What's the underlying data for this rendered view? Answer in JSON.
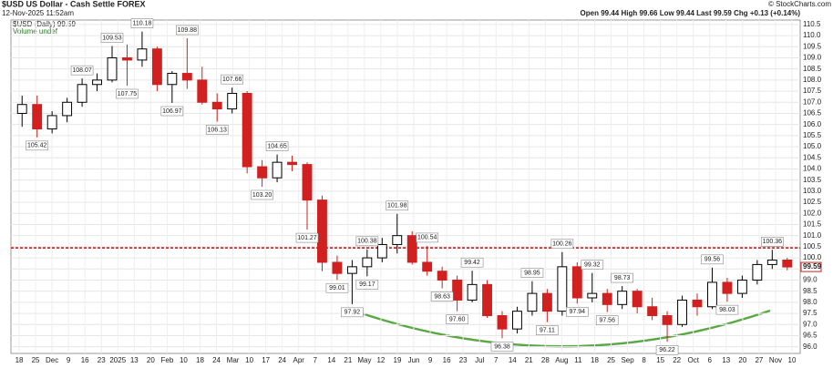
{
  "chart_data": {
    "type": "candlestick",
    "title": "$USD US Dollar - Cash Settle FOREX",
    "timestamp": "12-Nov-2025 11:52am",
    "credit": "© StockCharts.com",
    "quote": "Open 99.44 High 99.66 Low 99.44 Last 99.59 Chg +0.13 (+0.14%)",
    "legend": [
      "$USD (Daily) 99.59",
      "Volume undef"
    ],
    "last_price": 99.59,
    "up_color": "#000000",
    "down_color": "#d02020",
    "open": [
      106.5,
      106.9,
      105.8,
      106.4,
      107.0,
      107.8,
      108.0,
      109.0,
      108.9,
      109.4,
      107.8,
      108.3,
      108.0,
      107.0,
      106.7,
      107.4,
      104.1,
      103.6,
      104.3,
      104.2,
      102.6,
      99.8,
      99.3,
      99.6,
      100.0,
      100.6,
      101.0,
      99.8,
      99.4,
      99.0,
      98.1,
      98.8,
      97.4,
      96.8,
      97.6,
      98.4,
      97.6,
      99.6,
      98.2,
      98.4,
      97.9,
      98.5,
      97.8,
      97.4,
      97.0,
      98.1,
      97.8,
      98.9,
      98.4,
      99.0,
      99.7,
      99.9
    ],
    "high": [
      107.3,
      107.3,
      106.6,
      107.2,
      108.07,
      108.3,
      109.53,
      109.6,
      110.18,
      109.5,
      108.4,
      109.88,
      108.6,
      107.4,
      107.66,
      107.5,
      104.4,
      104.65,
      104.6,
      104.3,
      102.8,
      100.1,
      99.9,
      100.38,
      100.9,
      101.98,
      101.2,
      100.54,
      99.6,
      99.2,
      99.42,
      99.0,
      97.6,
      97.8,
      98.95,
      98.6,
      100.26,
      99.8,
      99.32,
      98.6,
      98.73,
      98.6,
      98.2,
      97.6,
      98.3,
      98.4,
      99.56,
      99.1,
      99.2,
      99.9,
      100.36,
      100.0
    ],
    "low": [
      105.9,
      105.42,
      105.6,
      106.1,
      106.8,
      107.5,
      107.9,
      107.75,
      108.6,
      107.5,
      106.97,
      107.6,
      106.9,
      106.13,
      106.5,
      103.8,
      103.2,
      103.4,
      103.9,
      101.27,
      99.4,
      99.01,
      97.92,
      99.17,
      99.8,
      100.2,
      99.7,
      99.2,
      98.63,
      97.6,
      98.0,
      97.3,
      96.38,
      96.6,
      97.4,
      97.11,
      97.4,
      97.94,
      98.0,
      97.56,
      97.7,
      97.5,
      97.2,
      96.22,
      96.9,
      97.4,
      97.7,
      98.03,
      98.2,
      98.8,
      99.5,
      99.44
    ],
    "close": [
      106.9,
      105.8,
      106.4,
      107.0,
      107.8,
      108.0,
      109.0,
      108.9,
      109.4,
      107.8,
      108.3,
      108.0,
      107.0,
      106.7,
      107.4,
      104.1,
      103.6,
      104.3,
      104.2,
      102.6,
      99.8,
      99.3,
      99.6,
      100.0,
      100.6,
      101.0,
      99.8,
      99.4,
      99.0,
      98.1,
      98.8,
      97.4,
      96.8,
      97.6,
      98.4,
      97.6,
      99.6,
      98.2,
      98.4,
      97.9,
      98.5,
      97.8,
      97.4,
      97.0,
      98.1,
      97.8,
      98.9,
      98.4,
      99.0,
      99.7,
      99.9,
      99.59
    ],
    "price_labels": [
      108.07,
      105.42,
      109.53,
      107.75,
      110.18,
      106.97,
      109.88,
      106.13,
      107.66,
      104.65,
      {
        "value": 103.2,
        "label": "103.20"
      },
      101.27,
      99.01,
      97.92,
      100.38,
      99.17,
      101.98,
      100.54,
      98.63,
      99.42,
      {
        "value": 97.6,
        "label": "97.60"
      },
      96.38,
      98.95,
      97.11,
      100.26,
      99.32,
      97.94,
      97.56,
      98.73,
      96.22,
      99.56,
      98.03,
      100.36
    ],
    "reference_line": {
      "value": 100.45,
      "color": "#e00000"
    },
    "x_labels": [
      "18",
      "25",
      "Dec",
      "9",
      "16",
      "23",
      "2025",
      "13",
      "20",
      "Feb",
      "10",
      "18",
      "24",
      "Mar",
      "10",
      "17",
      "24",
      "Apr",
      "7",
      "14",
      "21",
      "May",
      "12",
      "19",
      "Jun",
      "9",
      "16",
      "23",
      "Jul",
      "7",
      "14",
      "21",
      "28",
      "Aug",
      "11",
      "18",
      "25",
      "Sep",
      "8",
      "15",
      "22",
      "Oct",
      "6",
      "13",
      "20",
      "27",
      "Nov",
      "10"
    ],
    "ylim": [
      95.7,
      110.7
    ],
    "yticks": [
      {
        "value": 96,
        "label": "96.0"
      },
      96.5,
      {
        "value": 97,
        "label": "97.0"
      },
      97.5,
      {
        "value": 98,
        "label": "98.0"
      },
      98.5,
      {
        "value": 99,
        "label": "99.0"
      },
      99.5,
      {
        "value": 100,
        "label": "100.0"
      },
      100.5,
      {
        "value": 101,
        "label": "101.0"
      },
      101.5,
      {
        "value": 102,
        "label": "102.0"
      },
      102.5,
      {
        "value": 103,
        "label": "103.0"
      },
      103.5,
      {
        "value": 104,
        "label": "104.0"
      },
      104.5,
      {
        "value": 105,
        "label": "105.0"
      },
      105.5,
      {
        "value": 106,
        "label": "106.0"
      },
      106.5,
      {
        "value": 107,
        "label": "107.0"
      },
      107.5,
      {
        "value": 108,
        "label": "108.0"
      },
      108.5,
      {
        "value": 109,
        "label": "109.0"
      },
      109.5,
      {
        "value": 110,
        "label": "110.0"
      },
      110.5
    ],
    "grid": true
  }
}
